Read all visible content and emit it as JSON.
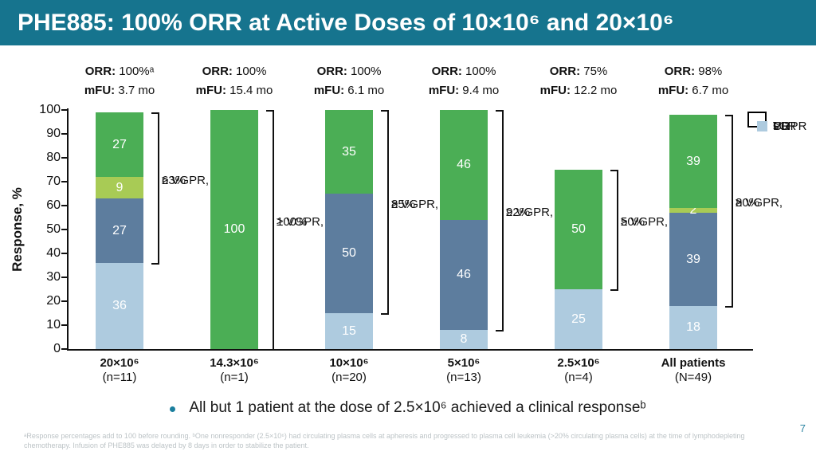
{
  "slide": {
    "title": "PHE885: 100% ORR at Active Doses of 10×10⁶ and 20×10⁶",
    "page_number": "7",
    "bullet_text": "All but 1 patient at the dose of 2.5×10⁶ achieved a clinical responseᵇ",
    "footnote": "ᵃResponse percentages add to 100 before rounding. ᵇOne nonresponder (2.5×10⁶) had circulating plasma cells at apheresis and progressed to plasma cell leukemia (>20% circulating plasma cells) at the time of lymphodepleting chemotherapy. Infusion of PHE885 was delayed by 8 days in order to stabilize the patient."
  },
  "colors": {
    "header_bar": "#16748E",
    "sCR": "#4BAE55",
    "CR": "#A8CB55",
    "VGPR": "#5D7D9E",
    "PR": "#AECBDF",
    "axis": "#111111",
    "footnote_text": "#BCC3C6",
    "page_number": "#2E86A3",
    "bullet_dot": "#1B7F9E"
  },
  "chart_data": {
    "type": "bar",
    "stacked": true,
    "title": "",
    "xlabel": "",
    "ylabel": "Response, %",
    "ylim": [
      0,
      100
    ],
    "ytick_step": 10,
    "grid": false,
    "legend_position": "top-right",
    "legend": [
      {
        "label": "sCR",
        "color_key": "sCR"
      },
      {
        "label": "CR",
        "color_key": "CR"
      },
      {
        "label": "VGPR",
        "color_key": "VGPR"
      },
      {
        "label": "PR",
        "color_key": "PR"
      }
    ],
    "header_labels": {
      "orr": "ORR:",
      "mfu": "mFU:"
    },
    "groups": [
      {
        "dose": "20×10⁶",
        "n_label": "(n=11)",
        "orr": "100%ᵃ",
        "mfu": "3.7 mo",
        "segments": [
          {
            "key": "PR",
            "value": 36
          },
          {
            "key": "VGPR",
            "value": 27
          },
          {
            "key": "CR",
            "value": 9
          },
          {
            "key": "sCR",
            "value": 27
          }
        ],
        "bracket": {
          "from": 36,
          "to": 99,
          "line1": "≥ VGPR,",
          "line2": "63%"
        }
      },
      {
        "dose": "14.3×10⁶",
        "n_label": "(n=1)",
        "orr": "100%",
        "mfu": "15.4 mo",
        "segments": [
          {
            "key": "sCR",
            "value": 100
          }
        ],
        "bracket": {
          "from": 0,
          "to": 100,
          "line1": "≥ VGPR,",
          "line2": "100%"
        }
      },
      {
        "dose": "10×10⁶",
        "n_label": "(n=20)",
        "orr": "100%",
        "mfu": "6.1 mo",
        "segments": [
          {
            "key": "PR",
            "value": 15
          },
          {
            "key": "VGPR",
            "value": 50
          },
          {
            "key": "sCR",
            "value": 35
          }
        ],
        "bracket": {
          "from": 15,
          "to": 100,
          "line1": "≥ VGPR,",
          "line2": "85%"
        }
      },
      {
        "dose": "5×10⁶",
        "n_label": "(n=13)",
        "orr": "100%",
        "mfu": "9.4 mo",
        "segments": [
          {
            "key": "PR",
            "value": 8
          },
          {
            "key": "VGPR",
            "value": 46
          },
          {
            "key": "sCR",
            "value": 46
          }
        ],
        "bracket": {
          "from": 8,
          "to": 100,
          "line1": "≥ VGPR,",
          "line2": "92%"
        }
      },
      {
        "dose": "2.5×10⁶",
        "n_label": "(n=4)",
        "orr": "75%",
        "mfu": "12.2 mo",
        "segments": [
          {
            "key": "PR",
            "value": 25
          },
          {
            "key": "sCR",
            "value": 50
          }
        ],
        "bracket": {
          "from": 25,
          "to": 75,
          "line1": "≥ VGPR,",
          "line2": "50%"
        }
      },
      {
        "dose": "All patients",
        "n_label": "(N=49)",
        "orr": "98%",
        "mfu": "6.7 mo",
        "segments": [
          {
            "key": "PR",
            "value": 18
          },
          {
            "key": "VGPR",
            "value": 39
          },
          {
            "key": "CR",
            "value": 2
          },
          {
            "key": "sCR",
            "value": 39
          }
        ],
        "bracket": {
          "from": 18,
          "to": 98,
          "line1": "≥ VGPR,",
          "line2": "80%"
        }
      }
    ]
  }
}
